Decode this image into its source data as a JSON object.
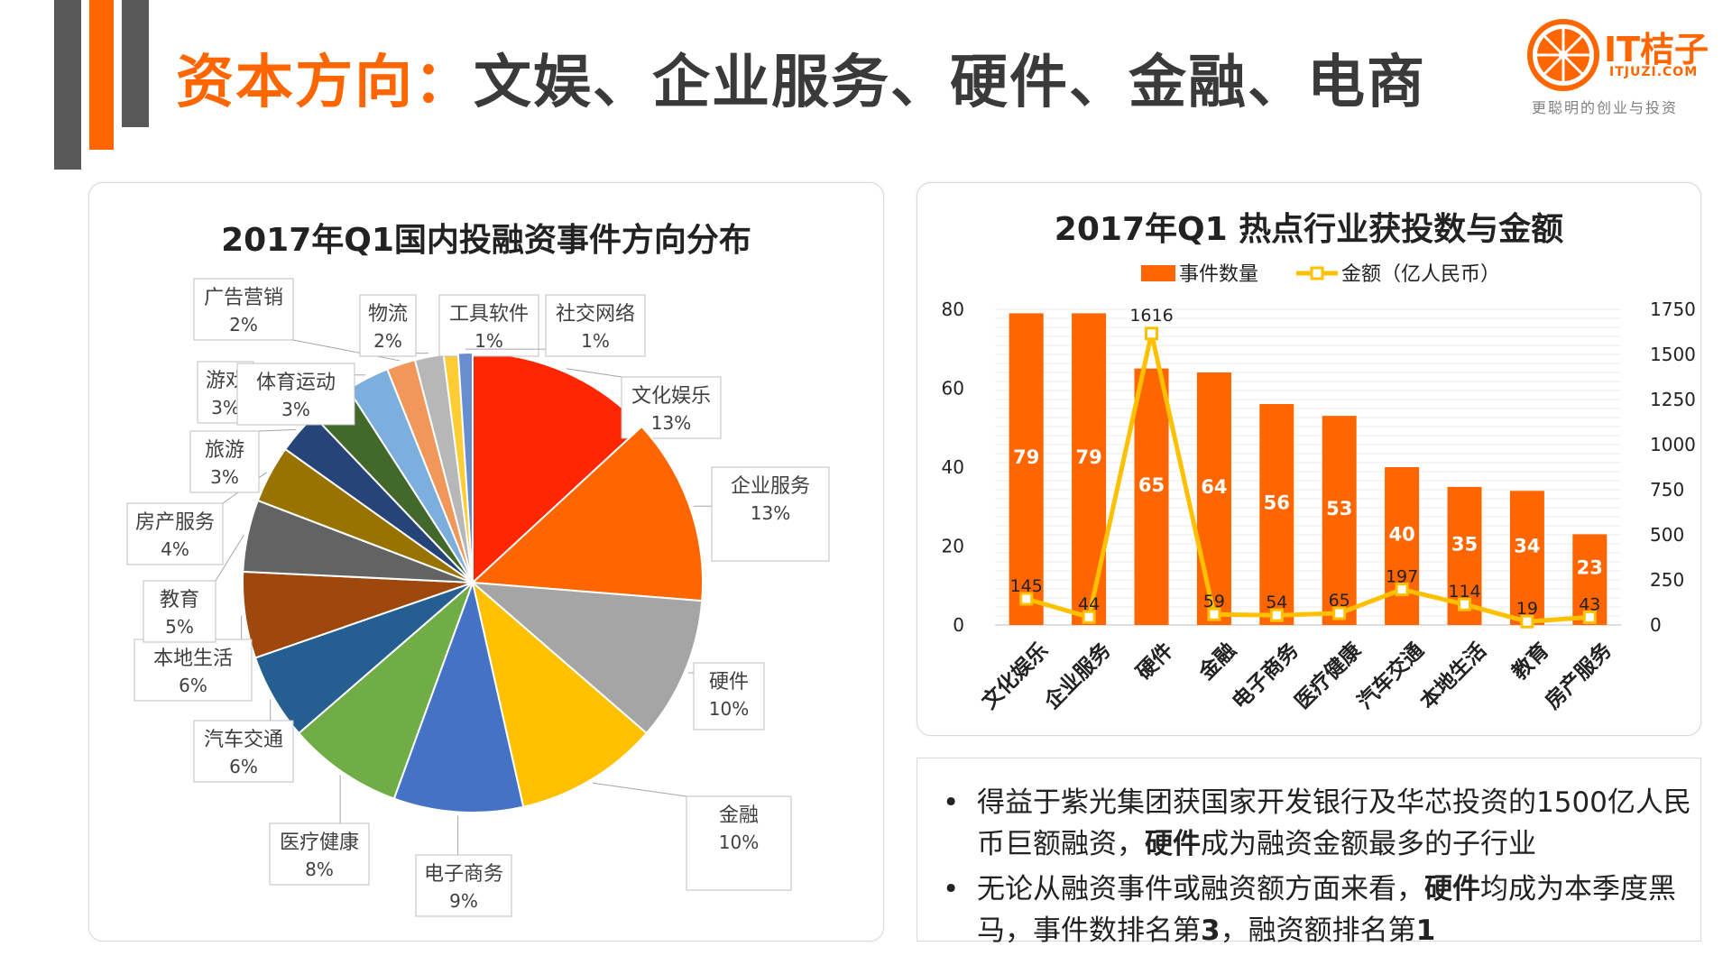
{
  "header": {
    "title_accent": "资本方向：",
    "title_rest": "文娱、企业服务、硬件、金融、电商"
  },
  "logo": {
    "brand": "IT桔子",
    "domain": "ITJUZI.COM",
    "tagline": "更聪明的创业与投资"
  },
  "colors": {
    "accent": "#FF6600",
    "dark_gray": "#595959",
    "line_yellow": "#FFC000"
  },
  "chart_data": [
    {
      "type": "pie",
      "title": "2017年Q1国内投融资事件方向分布",
      "slices": [
        {
          "label": "文化娱乐",
          "pct": "13%",
          "value": 13,
          "color": "#FF2600"
        },
        {
          "label": "企业服务",
          "pct": "13%",
          "value": 13,
          "color": "#FF6600"
        },
        {
          "label": "硬件",
          "pct": "10%",
          "value": 10,
          "color": "#A5A5A5"
        },
        {
          "label": "金融",
          "pct": "10%",
          "value": 10,
          "color": "#FFC000"
        },
        {
          "label": "电子商务",
          "pct": "9%",
          "value": 9,
          "color": "#4472C4"
        },
        {
          "label": "医疗健康",
          "pct": "8%",
          "value": 8,
          "color": "#70AD47"
        },
        {
          "label": "汽车交通",
          "pct": "6%",
          "value": 6,
          "color": "#255E91"
        },
        {
          "label": "本地生活",
          "pct": "6%",
          "value": 6,
          "color": "#9E480E"
        },
        {
          "label": "教育",
          "pct": "5%",
          "value": 5,
          "color": "#636363"
        },
        {
          "label": "房产服务",
          "pct": "4%",
          "value": 4,
          "color": "#997300"
        },
        {
          "label": "旅游",
          "pct": "3%",
          "value": 3,
          "color": "#264478"
        },
        {
          "label": "游戏",
          "pct": "3%",
          "value": 3,
          "color": "#43682B"
        },
        {
          "label": "体育运动",
          "pct": "3%",
          "value": 3,
          "color": "#7CAFDD"
        },
        {
          "label": "广告营销",
          "pct": "2%",
          "value": 2,
          "color": "#F1975A"
        },
        {
          "label": "物流",
          "pct": "2%",
          "value": 2,
          "color": "#B7B7B7"
        },
        {
          "label": "工具软件",
          "pct": "1%",
          "value": 1,
          "color": "#FFCD33"
        },
        {
          "label": "社交网络",
          "pct": "1%",
          "value": 1,
          "color": "#698ED0"
        }
      ]
    },
    {
      "type": "bar",
      "title": "2017年Q1 热点行业获投数与金额",
      "categories": [
        "文化娱乐",
        "企业服务",
        "硬件",
        "金融",
        "电子商务",
        "医疗健康",
        "汽车交通",
        "本地生活",
        "教育",
        "房产服务"
      ],
      "series": [
        {
          "name": "事件数量",
          "type": "bar",
          "axis": "left",
          "color": "#FF6600",
          "values": [
            79,
            79,
            65,
            64,
            56,
            53,
            40,
            35,
            34,
            23
          ]
        },
        {
          "name": "金额（亿人民币）",
          "type": "line",
          "axis": "right",
          "color": "#FFC000",
          "values": [
            145,
            44,
            1616,
            59,
            54,
            65,
            197,
            114,
            19,
            43
          ]
        }
      ],
      "y_left": {
        "min": 0,
        "max": 80,
        "ticks": [
          0,
          20,
          40,
          60,
          80
        ]
      },
      "y_right": {
        "min": 0,
        "max": 1750,
        "ticks": [
          0,
          250,
          500,
          750,
          1000,
          1250,
          1500,
          1750
        ]
      },
      "legend_position": "top"
    }
  ],
  "notes": [
    {
      "parts": [
        {
          "t": "得益于紫光集团获国家开发银行及华芯投资的1500亿人民币巨额融资，",
          "b": false
        },
        {
          "t": "硬件",
          "b": true
        },
        {
          "t": "成为融资金额最多的子行业",
          "b": false
        }
      ]
    },
    {
      "parts": [
        {
          "t": "无论从融资事件或融资额方面来看，",
          "b": false
        },
        {
          "t": "硬件",
          "b": true
        },
        {
          "t": "均成为本季度黑马，事件数排名第",
          "b": false
        },
        {
          "t": "3",
          "b": true
        },
        {
          "t": "，融资额排名第",
          "b": false
        },
        {
          "t": "1",
          "b": true
        }
      ]
    }
  ],
  "bullet": "•"
}
